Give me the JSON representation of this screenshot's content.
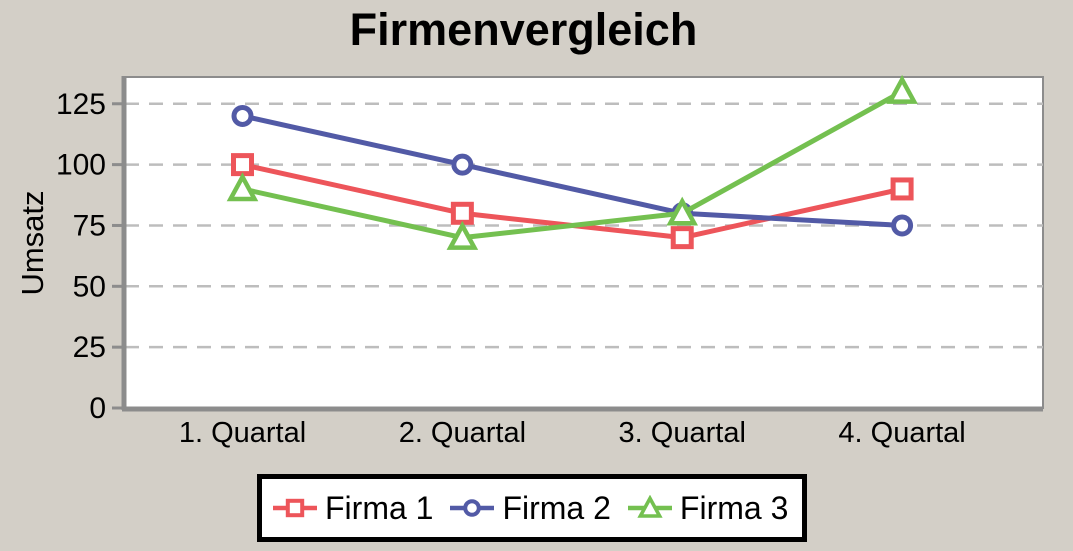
{
  "chart_data": {
    "type": "line",
    "title": "Firmenvergleich",
    "xlabel": "",
    "ylabel": "Umsatz",
    "categories": [
      "1. Quartal",
      "2. Quartal",
      "3. Quartal",
      "4. Quartal"
    ],
    "series": [
      {
        "name": "Firma 1",
        "values": [
          100,
          80,
          70,
          90
        ],
        "color": "#ED555A",
        "marker": "square"
      },
      {
        "name": "Firma 2",
        "values": [
          120,
          100,
          80,
          75
        ],
        "color": "#525AA6",
        "marker": "circle"
      },
      {
        "name": "Firma 3",
        "values": [
          90,
          70,
          80,
          130
        ],
        "color": "#74C050",
        "marker": "triangle"
      }
    ],
    "yticks": [
      0,
      25,
      50,
      75,
      100,
      125
    ],
    "ylim": [
      0,
      136
    ],
    "grid": "horizontal-dashed",
    "legend_position": "bottom-center"
  },
  "colors": {
    "background": "#D3CFC7",
    "plot_background": "#FFFFFF",
    "axis": "#8C8C8C",
    "gridline": "#BDBDBD",
    "text": "#000000",
    "legend_border": "#000000",
    "legend_background": "#FFFFFF"
  }
}
